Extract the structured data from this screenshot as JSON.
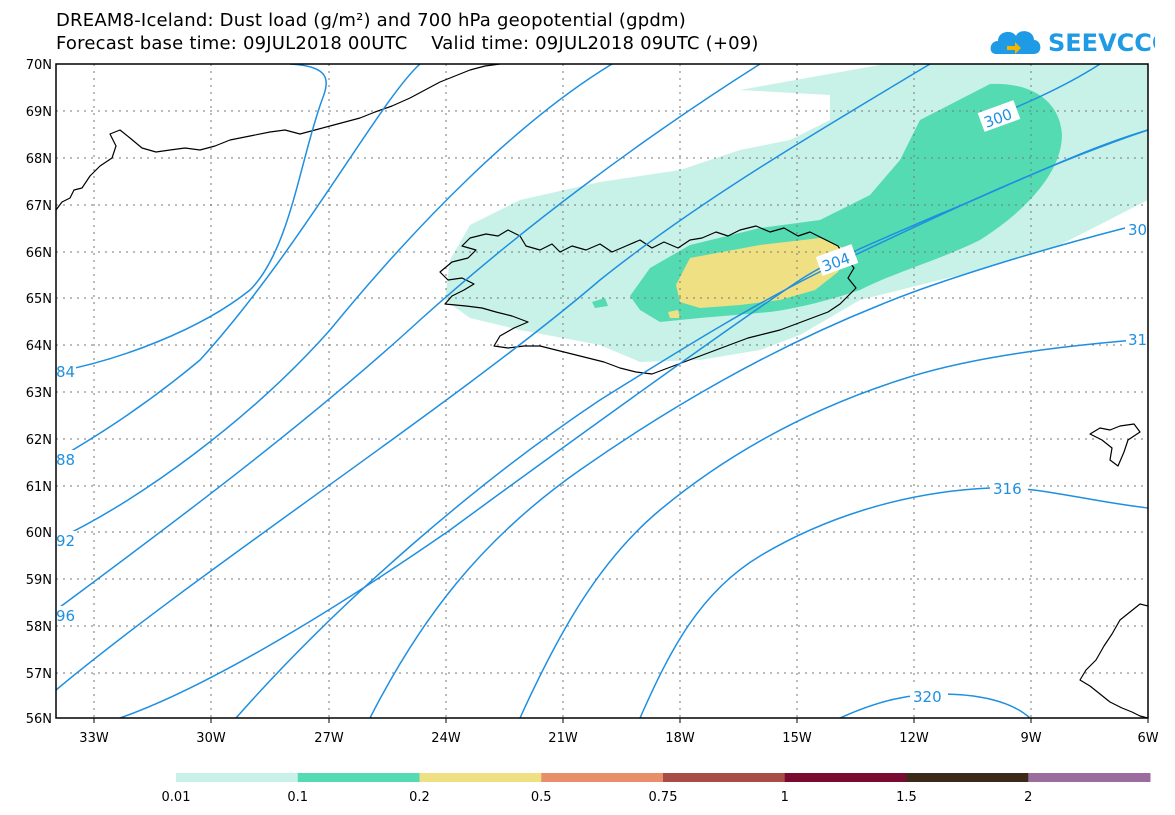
{
  "title_line1": "DREAM8-Iceland: Dust load (g/m²) and 700 hPa geopotential (gpdm)",
  "title_line2": "Forecast base time: 09JUL2018 00UTC    Valid time: 09JUL2018 09UTC (+09)",
  "logo_text": "SEEVCCC",
  "lat_labels": [
    "70N",
    "69N",
    "68N",
    "67N",
    "66N",
    "65N",
    "64N",
    "63N",
    "62N",
    "61N",
    "60N",
    "59N",
    "58N",
    "57N",
    "56N"
  ],
  "lon_labels": [
    "33W",
    "30W",
    "27W",
    "24W",
    "21W",
    "18W",
    "15W",
    "12W",
    "9W",
    "6W"
  ],
  "contour_labels": {
    "c300": "300",
    "c304": "304",
    "c30": "30",
    "c31": "31",
    "c84": "84",
    "c88": "88",
    "c92": "92",
    "c96": "96",
    "c316": "316",
    "c320": "320"
  },
  "colorbar": {
    "colors": [
      "#c8f2e8",
      "#55dbb2",
      "#f0e084",
      "#e88e6a",
      "#a84d45",
      "#7a0b30",
      "#3b2a17",
      "#9b6c9e"
    ],
    "labels": [
      "0.01",
      "0.1",
      "0.2",
      "0.5",
      "0.75",
      "1",
      "1.5",
      "2"
    ]
  },
  "colors": {
    "contour": "#1f8fe0",
    "coast": "#000000",
    "grid": "#777777"
  }
}
